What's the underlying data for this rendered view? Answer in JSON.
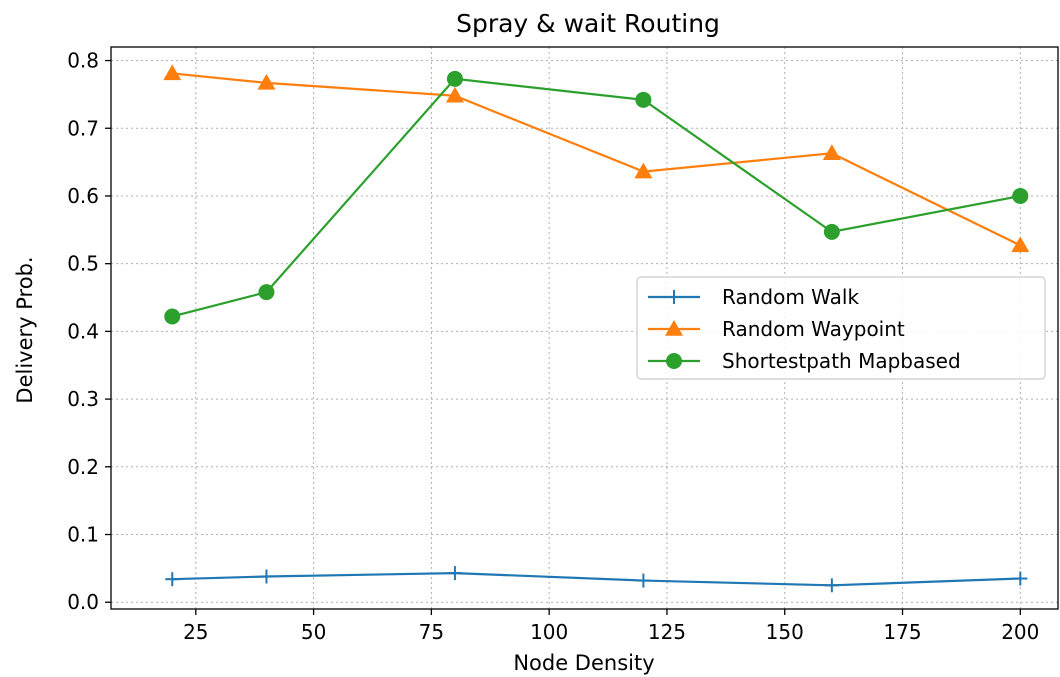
{
  "chart_data": {
    "type": "line",
    "title": "Spray & wait Routing",
    "xlabel": "Node Density",
    "ylabel": "Delivery Prob.",
    "x": [
      20,
      40,
      80,
      120,
      160,
      200
    ],
    "xlim": [
      7,
      208
    ],
    "ylim": [
      -0.01,
      0.82
    ],
    "xticks": [
      25,
      50,
      75,
      100,
      125,
      150,
      175,
      200
    ],
    "yticks": [
      0.0,
      0.1,
      0.2,
      0.3,
      0.4,
      0.5,
      0.6,
      0.7,
      0.8
    ],
    "ytick_labels": [
      "0.0",
      "0.1",
      "0.2",
      "0.3",
      "0.4",
      "0.5",
      "0.6",
      "0.7",
      "0.8"
    ],
    "grid": true,
    "legend_position": "center-right",
    "series": [
      {
        "name": "Random Walk",
        "color": "#1f77b4",
        "marker": "plus",
        "values": [
          0.034,
          0.038,
          0.043,
          0.032,
          0.025,
          0.035
        ]
      },
      {
        "name": "Random Waypoint",
        "color": "#ff7f0e",
        "marker": "triangle",
        "values": [
          0.781,
          0.767,
          0.748,
          0.636,
          0.663,
          0.527
        ]
      },
      {
        "name": "Shortestpath Mapbased",
        "color": "#2ca02c",
        "marker": "circle",
        "values": [
          0.422,
          0.458,
          0.773,
          0.742,
          0.547,
          0.6
        ]
      }
    ]
  }
}
